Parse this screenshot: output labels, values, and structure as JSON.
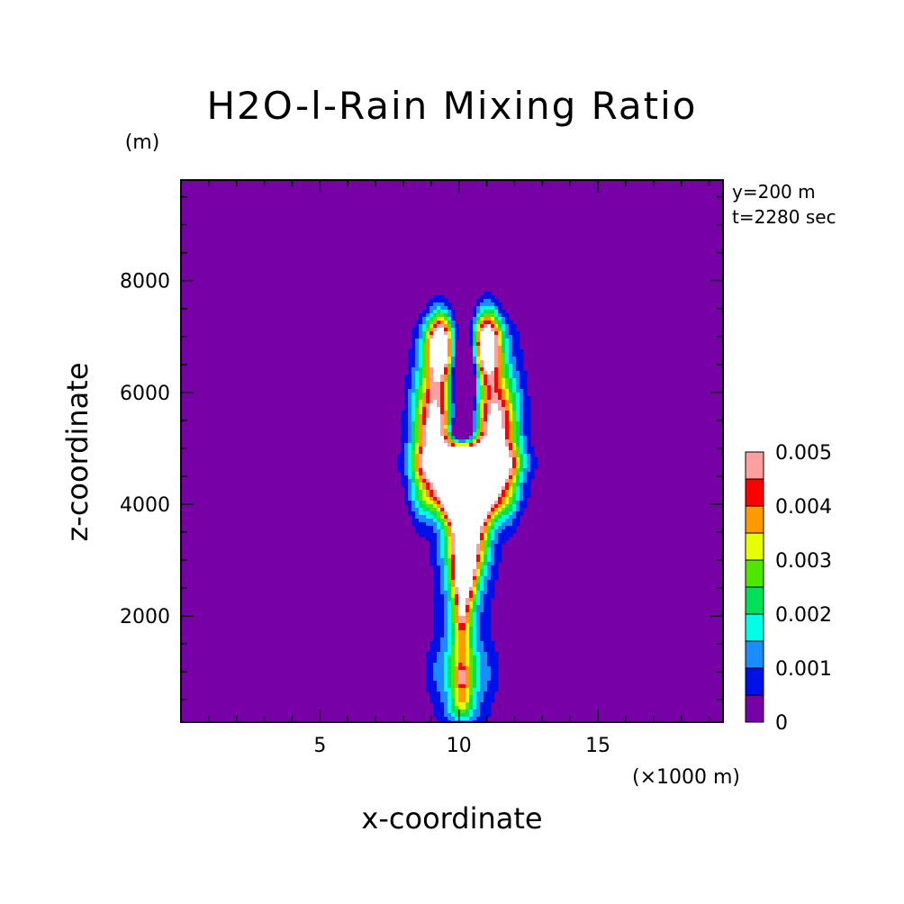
{
  "chart_data": {
    "type": "heatmap",
    "title": "H2O-l-Rain Mixing Ratio",
    "y_unit": "(m)",
    "x_unit": "(×1000 m)",
    "xlabel": "x-coordinate",
    "ylabel": "z-coordinate",
    "annotations": [
      "y=200 m",
      "t=2280 sec"
    ],
    "xlim": [
      0,
      19.5
    ],
    "ylim": [
      100,
      9800
    ],
    "x_ticks": [
      5,
      10,
      15
    ],
    "x_tick_labels": [
      "5",
      "10",
      "15"
    ],
    "y_ticks": [
      2000,
      4000,
      6000,
      8000
    ],
    "y_tick_labels": [
      "2000",
      "4000",
      "6000",
      "8000"
    ],
    "colorbar": {
      "levels": [
        0,
        0.0005,
        0.001,
        0.0015,
        0.002,
        0.0025,
        0.003,
        0.0035,
        0.004,
        0.0045,
        0.005
      ],
      "colors": [
        "#7700a6",
        "#0010e8",
        "#1a8cff",
        "#00ffe6",
        "#00e058",
        "#50e600",
        "#e6ff00",
        "#ff9900",
        "#ff0000",
        "#ffa0a0"
      ],
      "over_color": "#ffffff",
      "tick_values": [
        0,
        0.001,
        0.002,
        0.003,
        0.004,
        0.005
      ],
      "tick_labels": [
        "0",
        "0.001",
        "0.002",
        "0.003",
        "0.004",
        "0.005"
      ]
    },
    "field": {
      "background": 0,
      "features": [
        {
          "kind": "core",
          "x": 10.3,
          "z": 4300,
          "sx": 0.85,
          "sz": 420,
          "amp": 0.0066
        },
        {
          "kind": "core",
          "x": 10.3,
          "z": 3600,
          "sx": 0.5,
          "sz": 600,
          "amp": 0.006
        },
        {
          "kind": "core",
          "x": 10.2,
          "z": 3000,
          "sx": 0.22,
          "sz": 450,
          "amp": 0.0052
        },
        {
          "kind": "core",
          "x": 10.3,
          "z": 4750,
          "sx": 1.0,
          "sz": 200,
          "amp": 0.0062
        },
        {
          "kind": "column",
          "x": 10.1,
          "z0": 300,
          "z1": 3000,
          "sx": 0.75,
          "amp": 0.0011
        },
        {
          "kind": "column",
          "x": 10.1,
          "z0": 500,
          "z1": 2600,
          "sx": 0.3,
          "amp": 0.0024
        },
        {
          "kind": "core",
          "x": 10.1,
          "z": 2000,
          "sx": 0.12,
          "sz": 200,
          "amp": 0.0012
        },
        {
          "kind": "core",
          "x": 10.1,
          "z": 900,
          "sx": 0.15,
          "sz": 150,
          "amp": 0.0013
        },
        {
          "kind": "core",
          "x": 9.3,
          "z": 1000,
          "sx": 0.4,
          "sz": 350,
          "amp": 0.0006
        },
        {
          "kind": "core",
          "x": 10.9,
          "z": 1000,
          "sx": 0.45,
          "sz": 350,
          "amp": 0.0006
        },
        {
          "kind": "core",
          "x": 9.1,
          "z": 5400,
          "sx": 0.5,
          "sz": 650,
          "amp": 0.0045
        },
        {
          "kind": "core",
          "x": 11.3,
          "z": 5400,
          "sx": 0.55,
          "sz": 650,
          "amp": 0.0045
        },
        {
          "kind": "core",
          "x": 9.3,
          "z": 6800,
          "sx": 0.32,
          "sz": 420,
          "amp": 0.006
        },
        {
          "kind": "core",
          "x": 11.0,
          "z": 6850,
          "sx": 0.32,
          "sz": 420,
          "amp": 0.006
        },
        {
          "kind": "column",
          "x": 9.1,
          "z0": 4200,
          "z1": 7000,
          "sx": 0.6,
          "amp": 0.0011
        },
        {
          "kind": "column",
          "x": 11.3,
          "z0": 4200,
          "z1": 7000,
          "sx": 0.65,
          "amp": 0.0011
        },
        {
          "kind": "core",
          "x": 8.6,
          "z": 4100,
          "sx": 0.25,
          "sz": 500,
          "amp": 0.0007
        },
        {
          "kind": "core",
          "x": 11.8,
          "z": 4100,
          "sx": 0.25,
          "sz": 500,
          "amp": 0.0007
        },
        {
          "kind": "core",
          "x": 10.1,
          "z": 5300,
          "sx": 0.35,
          "sz": 180,
          "amp": -0.0025
        },
        {
          "kind": "core",
          "x": 10.0,
          "z": 5300,
          "sx": 0.18,
          "sz": 100,
          "amp": -0.0015
        },
        {
          "kind": "core",
          "x": 10.2,
          "z": 6200,
          "sx": 0.35,
          "sz": 600,
          "amp": -0.0032
        }
      ]
    }
  }
}
